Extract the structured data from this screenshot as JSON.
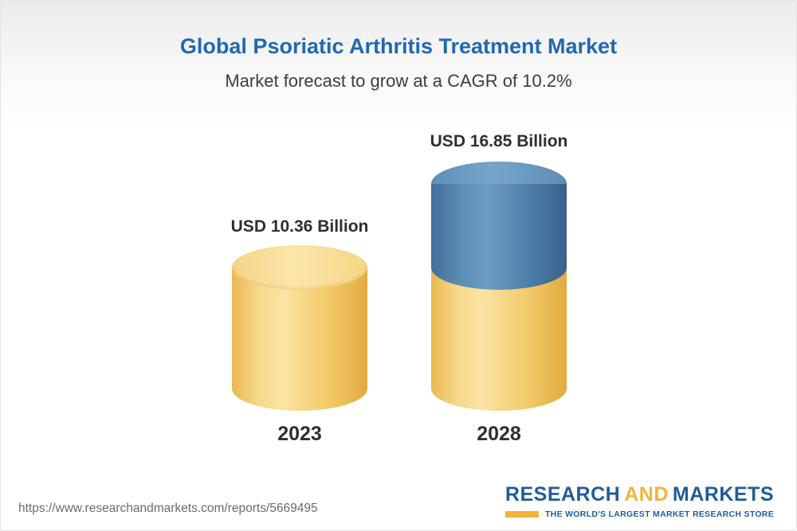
{
  "page": {
    "title": "Global Psoriatic Arthritis Treatment Market",
    "subtitle": "Market forecast to grow at a CAGR of 10.2%"
  },
  "chart_data": {
    "type": "bar",
    "title": "Global Psoriatic Arthritis Treatment Market",
    "subtitle": "Market forecast to grow at a CAGR of 10.2%",
    "categories": [
      "2023",
      "2028"
    ],
    "series": [
      {
        "name": "Market size (USD Billion)",
        "values": [
          10.36,
          16.85
        ]
      }
    ],
    "unit": "USD Billion",
    "cagr_percent": 10.2,
    "bars": [
      {
        "category": "2023",
        "value": 10.36,
        "label": "USD 10.36 Billion",
        "color": "#f3cd6e"
      },
      {
        "category": "2028",
        "value": 16.85,
        "label": "USD 16.85 Billion",
        "base_color": "#f3cd6e",
        "growth_color": "#4e7ea9"
      }
    ],
    "legend": "none",
    "grid": false,
    "axes": "none"
  },
  "colors": {
    "title_blue": "#2268b0",
    "bar_yellow": "#f3cd6e",
    "bar_blue": "#4e7ea9",
    "logo_blue": "#1f5c9b",
    "logo_gold": "#f1b43a"
  },
  "footer": {
    "url": "https://www.researchandmarkets.com/reports/5669495",
    "logo": {
      "part1": "RESEARCH",
      "part2": "AND",
      "part3": "MARKETS",
      "tagline": "THE WORLD'S LARGEST MARKET RESEARCH STORE"
    }
  }
}
